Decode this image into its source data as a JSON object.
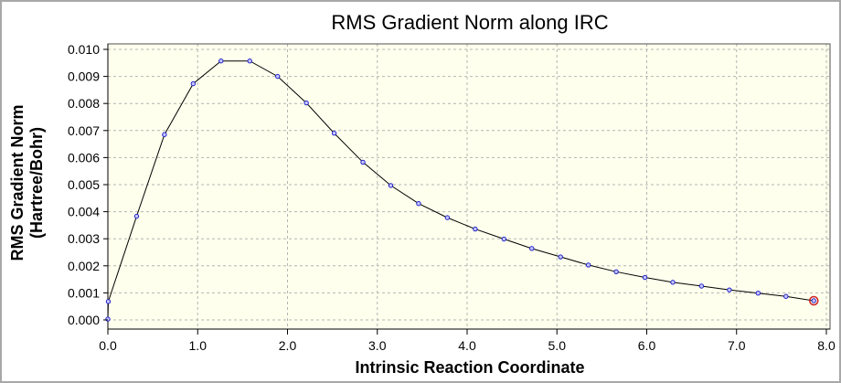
{
  "chart_data": {
    "type": "line",
    "title": "RMS Gradient Norm along IRC",
    "xlabel": "Intrinsic Reaction Coordinate",
    "ylabel_lines": [
      "RMS Gradient Norm",
      "(Hartree/Bohr)"
    ],
    "xlim": [
      0.0,
      8.0
    ],
    "ylim": [
      0.0,
      0.01
    ],
    "x_ticks": [
      "0.0",
      "1.0",
      "2.0",
      "3.0",
      "4.0",
      "5.0",
      "6.0",
      "7.0",
      "8.0"
    ],
    "y_ticks": [
      "0.000",
      "0.001",
      "0.002",
      "0.003",
      "0.004",
      "0.005",
      "0.006",
      "0.007",
      "0.008",
      "0.009",
      "0.010"
    ],
    "grid": true,
    "x": [
      0.0,
      0.005,
      0.32,
      0.63,
      0.95,
      1.26,
      1.58,
      1.89,
      2.21,
      2.52,
      2.84,
      3.15,
      3.46,
      3.78,
      4.09,
      4.41,
      4.72,
      5.04,
      5.35,
      5.66,
      5.98,
      6.29,
      6.61,
      6.92,
      7.24,
      7.55,
      7.86
    ],
    "y": [
      3e-05,
      0.00068,
      0.00383,
      0.00685,
      0.00873,
      0.00957,
      0.00957,
      0.009,
      0.00802,
      0.0069,
      0.00583,
      0.00497,
      0.0043,
      0.00378,
      0.00336,
      0.00299,
      0.00264,
      0.00233,
      0.00203,
      0.00178,
      0.00157,
      0.00139,
      0.00125,
      0.00111,
      0.00099,
      0.00087,
      0.00071
    ],
    "highlighted_point_index": 26,
    "colors": {
      "plot_background": "#ffffed",
      "line": "#000000",
      "marker_fill": "#c8c8ff",
      "marker_stroke": "#2020c8",
      "highlight": "#d02020"
    }
  }
}
